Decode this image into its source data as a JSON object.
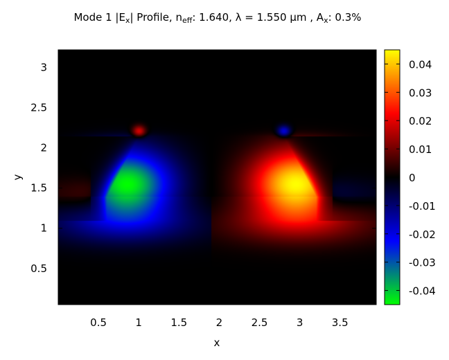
{
  "chart_data": {
    "type": "heatmap",
    "title": {
      "prefix": "Mode 1 |E",
      "sub1": "x",
      "mid1": "| Profile, n",
      "sub2": "eff",
      "mid2": ": 1.640, λ = 1.550 µm , A",
      "sub3": "x",
      "suffix": ": 0.3%"
    },
    "xlabel": "x",
    "ylabel": "y",
    "xlim": [
      0,
      3.95
    ],
    "ylim": [
      0.05,
      3.22
    ],
    "xticks": [
      0.5,
      1,
      1.5,
      2,
      2.5,
      3,
      3.5
    ],
    "xtick_labels": [
      "0.5",
      "1",
      "1.5",
      "2",
      "2.5",
      "3",
      "3.5"
    ],
    "yticks": [
      0.5,
      1,
      1.5,
      2,
      2.5,
      3
    ],
    "ytick_labels": [
      "0.5",
      "1",
      "1.5",
      "2",
      "2.5",
      "3"
    ],
    "colorbar": {
      "range": [
        -0.045,
        0.045
      ],
      "ticks": [
        0.04,
        0.03,
        0.02,
        0.01,
        0,
        -0.01,
        -0.02,
        -0.03,
        -0.04
      ],
      "tick_labels": [
        "0.04",
        "0.03",
        "0.02",
        "0.01",
        "0",
        "-0.01",
        "-0.02",
        "-0.03",
        "-0.04"
      ],
      "colors": {
        "min": "#00ff00",
        "neg_mid": "#0000ff",
        "zero": "#000000",
        "pos_mid": "#ff0000",
        "max": "#ffff00"
      }
    },
    "field": {
      "description_of_structure": "antisymmetric mode in trapezoidal ridge waveguide",
      "ridge_top_y": 2.15,
      "ridge_top_x": [
        1.0,
        2.8
      ],
      "ridge_base_y": 1.4,
      "ridge_base_x": [
        0.6,
        3.2
      ],
      "slab_top_y": 1.1,
      "negative_peak": {
        "x": 0.95,
        "y": 1.55,
        "value": -0.043
      },
      "positive_peak": {
        "x": 2.95,
        "y": 1.55,
        "value": 0.043
      }
    }
  }
}
